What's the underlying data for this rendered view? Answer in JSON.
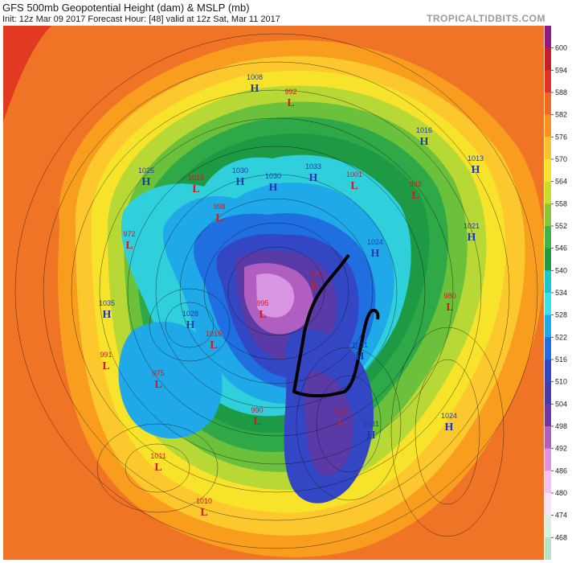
{
  "header": {
    "title": "GFS 500mb Geopotential Height (dam) & MSLP (mb)",
    "subtitle": "Init: 12z Mar 09 2017   Forecast Hour: [48]   valid at 12z Sat, Mar 11 2017",
    "brand": "TROPICALTIDBITS.COM"
  },
  "colorbar": {
    "ticks": [
      "600",
      "594",
      "588",
      "582",
      "576",
      "570",
      "564",
      "558",
      "552",
      "546",
      "540",
      "534",
      "528",
      "522",
      "516",
      "510",
      "504",
      "498",
      "492",
      "486",
      "480",
      "474",
      "468"
    ],
    "colors": [
      "#8e1a86",
      "#c21f2d",
      "#de3326",
      "#ee6a22",
      "#f7931e",
      "#fbc02d",
      "#f7e42a",
      "#c7dd2a",
      "#86c838",
      "#3fb24a",
      "#1e9a45",
      "#17c7d3",
      "#39e0e6",
      "#1fa9e8",
      "#1f6fe0",
      "#3346c4",
      "#4a3aa8",
      "#6b3aa0",
      "#b05fc0",
      "#e092e0",
      "#f2c2f0",
      "#f6e4f6",
      "#d9f2e0",
      "#b6e4c8"
    ]
  },
  "pressure_centers": [
    {
      "type": "H",
      "value": "1008"
    },
    {
      "type": "L",
      "value": "992"
    },
    {
      "type": "H",
      "value": "1016"
    },
    {
      "type": "H",
      "value": "1013"
    },
    {
      "type": "H",
      "value": "1025"
    },
    {
      "type": "L",
      "value": "1019"
    },
    {
      "type": "H",
      "value": "1030"
    },
    {
      "type": "H",
      "value": "1030"
    },
    {
      "type": "H",
      "value": "1033"
    },
    {
      "type": "L",
      "value": "1001"
    },
    {
      "type": "L",
      "value": "993"
    },
    {
      "type": "L",
      "value": "998"
    },
    {
      "type": "H",
      "value": "1021"
    },
    {
      "type": "H",
      "value": "1024"
    },
    {
      "type": "L",
      "value": "972"
    },
    {
      "type": "L",
      "value": "975"
    },
    {
      "type": "L",
      "value": "995"
    },
    {
      "type": "H",
      "value": "1035"
    },
    {
      "type": "H",
      "value": "1028"
    },
    {
      "type": "L",
      "value": "1016"
    },
    {
      "type": "L",
      "value": "980"
    },
    {
      "type": "L",
      "value": "991"
    },
    {
      "type": "L",
      "value": "975"
    },
    {
      "type": "H",
      "value": "1031"
    },
    {
      "type": "L",
      "value": "990"
    },
    {
      "type": "L",
      "value": "967"
    },
    {
      "type": "H",
      "value": "1031"
    },
    {
      "type": "H",
      "value": "1024"
    },
    {
      "type": "L",
      "value": "1011"
    },
    {
      "type": "L",
      "value": "1010"
    }
  ]
}
